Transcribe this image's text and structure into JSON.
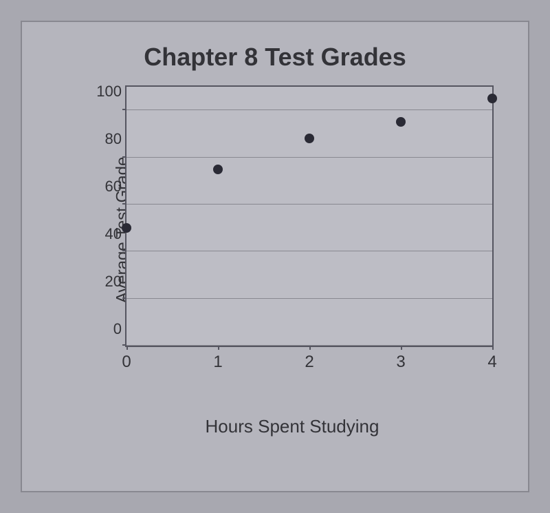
{
  "chart": {
    "type": "scatter",
    "title": "Chapter 8 Test Grades",
    "x_label": "Hours Spent Studying",
    "y_label": "Average Test Grade",
    "x_values": [
      0,
      1,
      2,
      3,
      4
    ],
    "y_values": [
      50,
      75,
      88,
      95,
      105
    ],
    "point_color": "#2a2a35",
    "point_size": 14,
    "xlim": [
      0,
      4
    ],
    "ylim": [
      0,
      110
    ],
    "x_ticks": [
      0,
      1,
      2,
      3,
      4
    ],
    "y_ticks": [
      0,
      20,
      40,
      60,
      80,
      100
    ],
    "grid": true,
    "grid_color": "#888890",
    "axis_color": "#555560",
    "background_color": "#bdbdc5",
    "page_background": "#a8a8b0",
    "panel_background": "#b5b5bd",
    "title_fontsize": 36,
    "label_fontsize": 26,
    "tick_fontsize": 22,
    "text_color": "#333338"
  }
}
